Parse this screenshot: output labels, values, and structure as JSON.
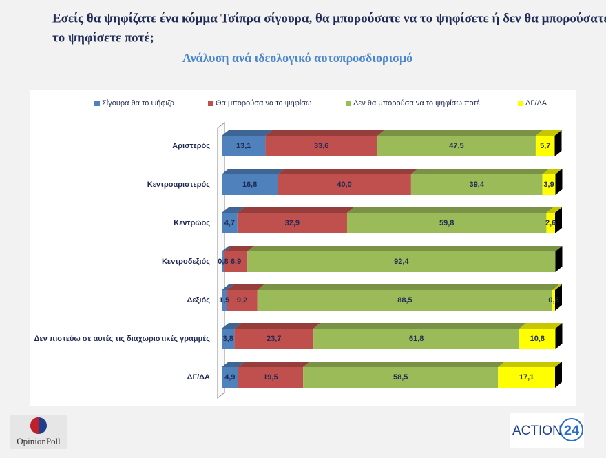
{
  "chart_data": {
    "type": "stacked-barh",
    "title": "Εσείς θα ψηφίζατε ένα κόμμα Τσίπρα σίγουρα, θα μπορούσατε να το ψηφίσετε ή δεν θα μπορούσατε να το ψηφίσετε ποτέ;",
    "subtitle": "Ανάλυση ανά ιδεολογικό αυτοπροσδιορισμό",
    "categories": [
      "Αριστερός",
      "Κεντροαριστερός",
      "Κεντρώος",
      "Κεντροδεξιός",
      "Δεξιός",
      "Δεν πιστεύω σε αυτές τις διαχωριστικές γραμμές",
      "ΔΓ/ΔΑ"
    ],
    "xlim": [
      0,
      100
    ],
    "legend": "top",
    "series": [
      {
        "name": "Σίγουρα θα το ψήφιζα",
        "color": "#4f81bd",
        "values": [
          13.1,
          16.8,
          4.7,
          0.8,
          1.5,
          3.8,
          4.9
        ],
        "value_labels": [
          "13,1",
          "16,8",
          "4,7",
          "0,8",
          "1,5",
          "3,8",
          "4,9"
        ]
      },
      {
        "name": "Θα μπορούσα να το ψηφίσω",
        "color": "#c0504d",
        "values": [
          33.6,
          40.0,
          32.9,
          6.9,
          9.2,
          23.7,
          19.5
        ],
        "value_labels": [
          "33,6",
          "40,0",
          "32,9",
          "6,9",
          "9,2",
          "23,7",
          "19,5"
        ]
      },
      {
        "name": "Δεν θα μπορούσα να το ψηφίσω ποτέ",
        "color": "#9bbb59",
        "values": [
          47.5,
          39.4,
          59.8,
          92.4,
          88.5,
          61.8,
          58.5
        ],
        "value_labels": [
          "47,5",
          "39,4",
          "59,8",
          "92,4",
          "88,5",
          "61,8",
          "58,5"
        ]
      },
      {
        "name": "ΔΓ/ΔΑ",
        "color": "#ffff00",
        "values": [
          5.7,
          3.9,
          2.6,
          null,
          0.8,
          10.8,
          17.1
        ],
        "value_labels": [
          "5,7",
          "3,9",
          "2,6",
          null,
          "0,8",
          "10,8",
          "17,1"
        ]
      }
    ]
  },
  "logos": {
    "left": "OpinionPoll",
    "right": "ACTION",
    "right_number": "24"
  }
}
